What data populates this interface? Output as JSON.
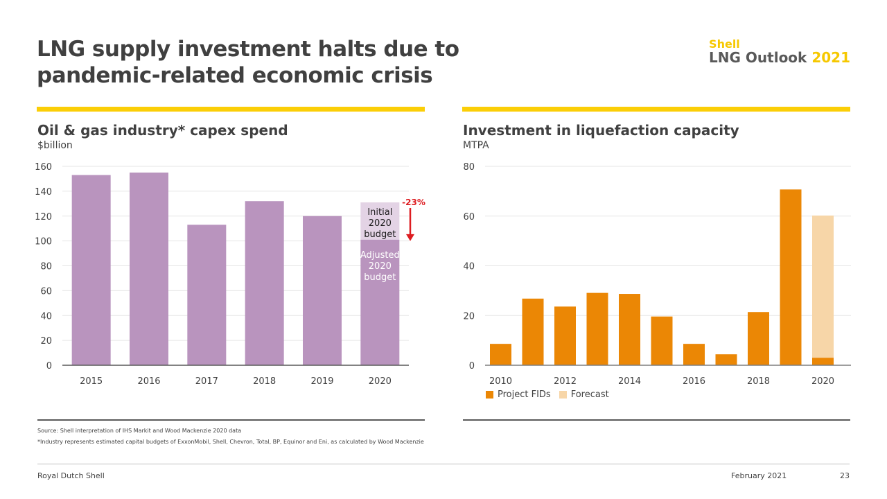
{
  "slide": {
    "title_line1": "LNG supply investment halts due to",
    "title_line2": "pandemic-related economic crisis",
    "brand_shell": "Shell",
    "brand_outlook": "LNG Outlook",
    "brand_year": "2021"
  },
  "colors": {
    "yellow": "#fbce07",
    "purple": "#b994be",
    "purple_light": "#e3d3e5",
    "orange": "#eb8705",
    "orange_light": "#f7d6a8",
    "red": "#dd1d21",
    "text": "#404040"
  },
  "notes": {
    "source": "Source: Shell interpretation of IHS Markit and Wood Mackenzie 2020 data",
    "footnote": "*Industry represents estimated capital budgets of ExxonMobil, Shell, Chevron, Total, BP, Equinor and Eni, as calculated by Wood Mackenzie"
  },
  "footer": {
    "company": "Royal Dutch Shell",
    "date": "February 2021",
    "page": "23"
  },
  "chart_data": [
    {
      "type": "bar",
      "title": "Oil & gas industry* capex spend",
      "ylabel": "$billion",
      "xlabel": "",
      "categories": [
        "2015",
        "2016",
        "2017",
        "2018",
        "2019",
        "2020"
      ],
      "values": [
        153,
        155,
        113,
        132,
        120,
        101
      ],
      "initial_2020_budget": 131,
      "adjusted_2020_budget": 101,
      "ylim": [
        0,
        160
      ],
      "yticks": [
        0,
        20,
        40,
        60,
        80,
        100,
        120,
        140,
        160
      ],
      "grid": true,
      "annotations": {
        "change": "-23%",
        "initial_label": [
          "Initial",
          "2020",
          "budget"
        ],
        "adjusted_label": [
          "Adjusted",
          "2020",
          "budget"
        ]
      }
    },
    {
      "type": "bar",
      "title": "Investment in liquefaction capacity",
      "ylabel": "MTPA",
      "xlabel": "",
      "categories": [
        "2010",
        "2011",
        "2012",
        "2013",
        "2014",
        "2015",
        "2016",
        "2017",
        "2018",
        "2019",
        "2020"
      ],
      "xtick_labels": [
        "2010",
        "2012",
        "2014",
        "2016",
        "2018",
        "2020"
      ],
      "series": [
        {
          "name": "Project FIDs",
          "values": [
            8.6,
            26.8,
            23.6,
            29.1,
            28.7,
            19.6,
            8.6,
            4.4,
            21.4,
            70.7,
            3.0
          ]
        },
        {
          "name": "Forecast",
          "values": [
            null,
            null,
            null,
            null,
            null,
            null,
            null,
            null,
            null,
            null,
            60.2
          ]
        }
      ],
      "ylim": [
        0,
        80
      ],
      "yticks": [
        0,
        20,
        40,
        60,
        80
      ],
      "grid": true,
      "legend": "bottom-left"
    }
  ]
}
